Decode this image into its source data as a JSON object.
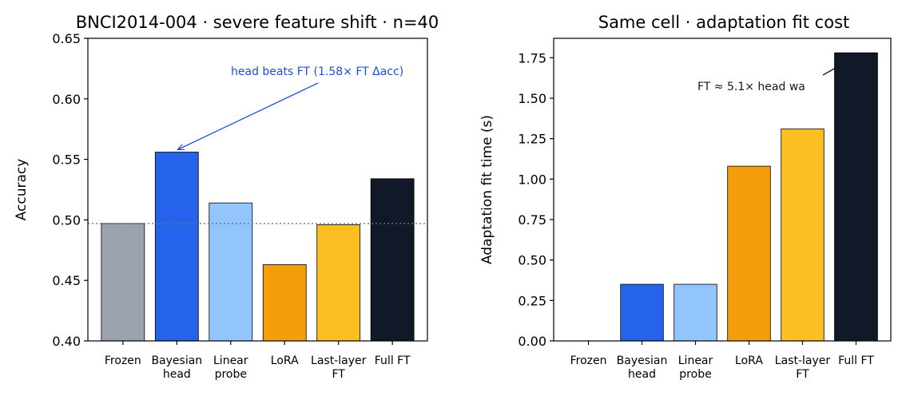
{
  "chart_data": [
    {
      "type": "bar",
      "title": "BNCI2014-004 · severe feature shift · n=40",
      "xlabel": "",
      "ylabel": "Accuracy",
      "categories": [
        "Frozen",
        "Bayesian\nhead",
        "Linear\nprobe",
        "LoRA",
        "Last-layer\nFT",
        "Full FT"
      ],
      "values": [
        0.497,
        0.556,
        0.514,
        0.463,
        0.496,
        0.534
      ],
      "colors": [
        "#9ca3af",
        "#2563eb",
        "#93c5fd",
        "#f59e0b",
        "#fbbf24",
        "#111827"
      ],
      "ylim": [
        0.4,
        0.65
      ],
      "yticks": [
        "0.40",
        "0.45",
        "0.50",
        "0.55",
        "0.60",
        "0.65"
      ],
      "reference_line": {
        "y": 0.497,
        "style": "dotted",
        "color": "#6b7280"
      },
      "annotation": {
        "text": "head beats FT (1.58× FT Δacc)",
        "color": "#1d4ed8",
        "target_category": "Bayesian\nhead",
        "target_value": 0.556
      },
      "grid": false
    },
    {
      "type": "bar",
      "title": "Same cell · adaptation fit cost",
      "xlabel": "",
      "ylabel": "Adaptation fit time (s)",
      "categories": [
        "Frozen",
        "Bayesian\nhead",
        "Linear\nprobe",
        "LoRA",
        "Last-layer\nFT",
        "Full FT"
      ],
      "values": [
        0.0,
        0.35,
        0.35,
        1.08,
        1.31,
        1.78
      ],
      "colors": [
        "#9ca3af",
        "#2563eb",
        "#93c5fd",
        "#f59e0b",
        "#fbbf24",
        "#111827"
      ],
      "ylim": [
        0.0,
        1.87
      ],
      "yticks": [
        "0.00",
        "0.25",
        "0.50",
        "0.75",
        "1.00",
        "1.25",
        "1.50",
        "1.75"
      ],
      "annotation": {
        "text": "FT ≈ 5.1× head wa",
        "color": "#111827",
        "target_category": "Full FT",
        "target_value": 1.78
      },
      "grid": false
    }
  ]
}
